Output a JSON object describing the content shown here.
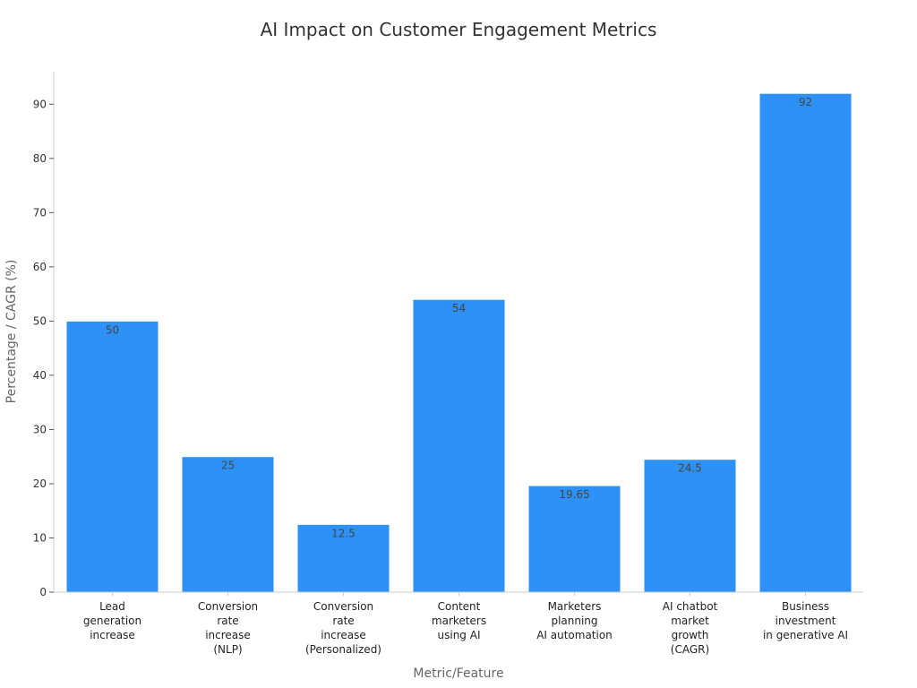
{
  "chart_data": {
    "type": "bar",
    "title": "AI Impact on Customer Engagement Metrics",
    "xlabel": "Metric/Feature",
    "ylabel": "Percentage / CAGR (%)",
    "categories": [
      [
        "Lead",
        "generation",
        "increase"
      ],
      [
        "Conversion",
        "rate",
        "increase",
        "(NLP)"
      ],
      [
        "Conversion",
        "rate",
        "increase",
        "(Personalized)"
      ],
      [
        "Content",
        "marketers",
        "using AI"
      ],
      [
        "Marketers",
        "planning",
        "AI automation"
      ],
      [
        "AI chatbot",
        "market",
        "growth",
        "(CAGR)"
      ],
      [
        "Business",
        "investment",
        "in generative AI"
      ]
    ],
    "values": [
      50,
      25,
      12.5,
      54,
      19.65,
      24.5,
      92
    ],
    "value_labels": [
      "50",
      "25",
      "12.5",
      "54",
      "19.65",
      "24.5",
      "92"
    ],
    "ylim": [
      0,
      96
    ],
    "yticks": [
      0,
      10,
      20,
      30,
      40,
      50,
      60,
      70,
      80,
      90
    ],
    "bar_color": "#2e91f8",
    "grid": false,
    "legend": false
  }
}
